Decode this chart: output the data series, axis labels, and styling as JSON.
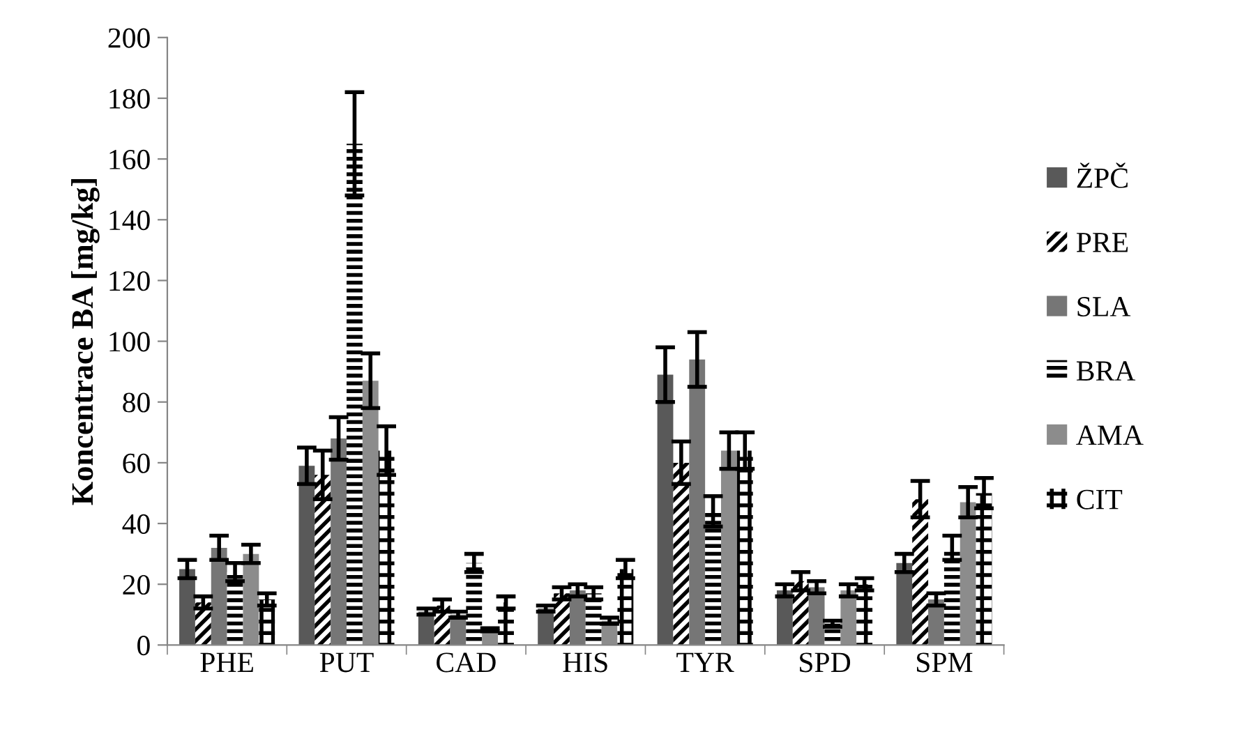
{
  "chart_data": {
    "type": "bar",
    "ylabel": "Koncentrace BA [mg/kg]",
    "categories": [
      "PHE",
      "PUT",
      "CAD",
      "HIS",
      "TYR",
      "SPD",
      "SPM"
    ],
    "ylim": [
      0,
      200
    ],
    "yticks": [
      0,
      20,
      40,
      60,
      80,
      100,
      120,
      140,
      160,
      180,
      200
    ],
    "grid": false,
    "legend": "right",
    "series": [
      {
        "name": "ŽPČ",
        "color": "#595959",
        "values": [
          25,
          59,
          11,
          12,
          89,
          18,
          27
        ],
        "errors": [
          3,
          6,
          1,
          1,
          9,
          2,
          3
        ]
      },
      {
        "name": "PRE",
        "color": "#000000",
        "values": [
          14,
          56,
          13,
          17,
          60,
          21,
          48
        ],
        "errors": [
          2,
          8,
          2,
          2,
          7,
          3,
          6
        ]
      },
      {
        "name": "SLA",
        "color": "#767676",
        "values": [
          32,
          68,
          10,
          18,
          94,
          19,
          15
        ],
        "errors": [
          4,
          7,
          1,
          2,
          9,
          2,
          2
        ]
      },
      {
        "name": "BRA",
        "color": "#000000",
        "values": [
          24,
          165,
          27,
          17,
          44,
          7,
          32
        ],
        "errors": [
          3,
          17,
          3,
          2,
          5,
          1,
          4
        ]
      },
      {
        "name": "AMA",
        "color": "#8c8c8c",
        "values": [
          30,
          87,
          5,
          8,
          64,
          18,
          47
        ],
        "errors": [
          3,
          9,
          0.5,
          1,
          6,
          2,
          5
        ]
      },
      {
        "name": "CIT",
        "color": "#000000",
        "values": [
          15,
          64,
          14,
          25,
          64,
          20,
          50
        ],
        "errors": [
          2,
          8,
          2,
          3,
          6,
          2,
          5
        ]
      }
    ]
  }
}
